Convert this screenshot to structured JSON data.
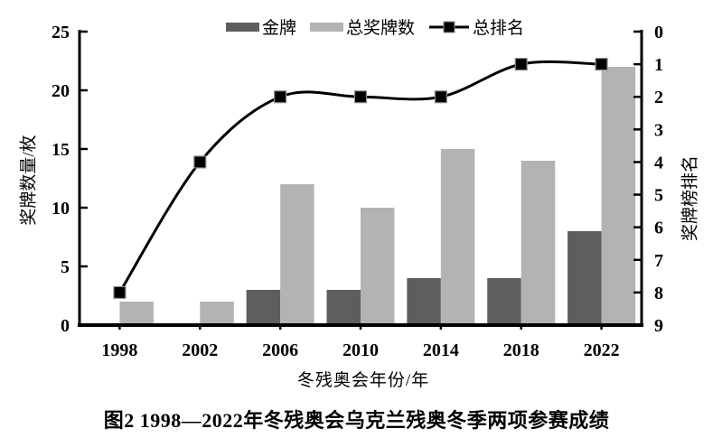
{
  "figure": {
    "caption": "图2 1998—2022年冬残奥会乌克兰残奥冬季两项参赛成绩"
  },
  "chart_data": {
    "type": "bar",
    "subtype": "grouped-bars-with-line-overlay",
    "title": "",
    "categories": [
      "1998",
      "2002",
      "2006",
      "2010",
      "2014",
      "2018",
      "2022"
    ],
    "series": [
      {
        "name": "金牌",
        "type": "bar",
        "axis": "left",
        "color": "#5e5e5e",
        "values": [
          0,
          0,
          3,
          3,
          4,
          4,
          8
        ]
      },
      {
        "name": "总奖牌数",
        "type": "bar",
        "axis": "left",
        "color": "#b3b3b3",
        "values": [
          2,
          2,
          12,
          10,
          15,
          14,
          22
        ]
      },
      {
        "name": "总排名",
        "type": "line",
        "axis": "right",
        "color": "#000000",
        "marker": "square",
        "values": [
          8,
          4,
          2,
          2,
          2,
          1,
          1
        ]
      }
    ],
    "xlabel": "冬残奥会年份/年",
    "ylabel_left": "奖牌数量/枚",
    "ylabel_right": "奖牌榜排名",
    "ylim_left": [
      0,
      25
    ],
    "yticks_left": [
      0,
      5,
      10,
      15,
      20,
      25
    ],
    "ylim_right": [
      0,
      9
    ],
    "yticks_right": [
      0,
      1,
      2,
      3,
      4,
      5,
      6,
      7,
      8,
      9
    ],
    "right_axis_inverted": true,
    "grid": false,
    "legend_position": "top",
    "axis_color": "#000000"
  }
}
